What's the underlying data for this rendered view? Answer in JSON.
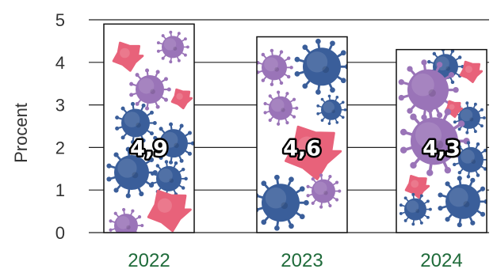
{
  "chart_data": {
    "type": "bar",
    "categories": [
      "2022",
      "2023",
      "2024"
    ],
    "values": [
      4.9,
      4.6,
      4.3
    ],
    "value_labels": [
      "4,9",
      "4,6",
      "4,3"
    ],
    "ylabel": "Procent",
    "ylim": [
      0,
      5
    ],
    "yticks": [
      "0",
      "1",
      "2",
      "3",
      "4",
      "5"
    ],
    "grid": true,
    "legend": "none",
    "colors": {
      "category_label": "#1f6b3a",
      "grid": "#222222",
      "bar_outline": "#111111",
      "virus_blue": "#3a5e9a",
      "virus_purple": "#9a74b8",
      "virus_pink": "#e8627a"
    },
    "bar_fill_icons": [
      "virus-icon"
    ]
  }
}
